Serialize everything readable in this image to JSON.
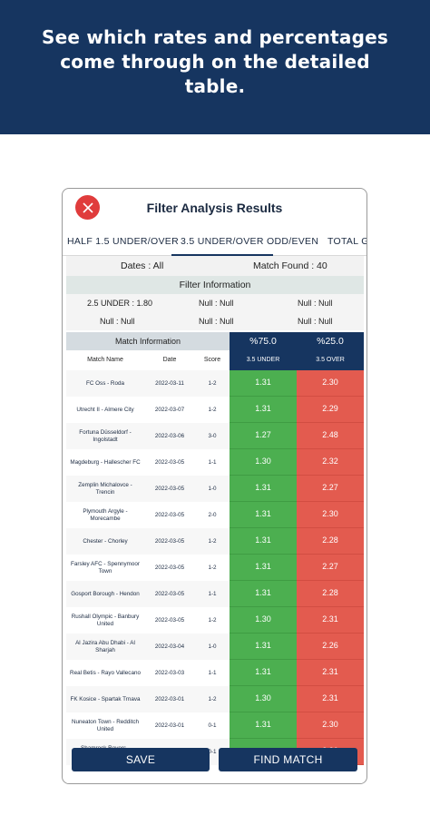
{
  "banner": {
    "text": "See which rates and percentages come through on the detailed table."
  },
  "header": {
    "title": "Filter Analysis Results",
    "close_icon": "close-icon",
    "accent": "#e03c3c"
  },
  "tabs": [
    "HALF 1.5 UNDER/OVER",
    "3.5 UNDER/OVER",
    "ODD/EVEN",
    "TOTAL G"
  ],
  "summary": {
    "dates": "Dates : All",
    "match_found": "Match Found : 40"
  },
  "filter_info": {
    "title": "Filter Information",
    "rows": [
      [
        "2.5 UNDER : 1.80",
        "Null : Null",
        "Null : Null"
      ],
      [
        "Null : Null",
        "Null : Null",
        "Null : Null"
      ]
    ]
  },
  "table": {
    "match_info_label": "Match Information",
    "under_pct": "%75.0",
    "over_pct": "%25.0",
    "headers": [
      "Match Name",
      "Date",
      "Score",
      "3.5 UNDER",
      "3.5 OVER"
    ],
    "rows": [
      {
        "match": "FC Oss - Roda",
        "date": "2022-03-11",
        "score": "1-2",
        "under": "1.31",
        "over": "2.30"
      },
      {
        "match": "Utrecht II - Almere City",
        "date": "2022-03-07",
        "score": "1-2",
        "under": "1.31",
        "over": "2.29"
      },
      {
        "match": "Fortuna Düsseldorf - Ingolstadt",
        "date": "2022-03-06",
        "score": "3-0",
        "under": "1.27",
        "over": "2.48"
      },
      {
        "match": "Magdeburg - Hallescher FC",
        "date": "2022-03-05",
        "score": "1-1",
        "under": "1.30",
        "over": "2.32"
      },
      {
        "match": "Zemplin Michalovce - Trencin",
        "date": "2022-03-05",
        "score": "1-0",
        "under": "1.31",
        "over": "2.27"
      },
      {
        "match": "Plymouth Argyle - Morecambe",
        "date": "2022-03-05",
        "score": "2-0",
        "under": "1.31",
        "over": "2.30"
      },
      {
        "match": "Chester - Chorley",
        "date": "2022-03-05",
        "score": "1-2",
        "under": "1.31",
        "over": "2.28"
      },
      {
        "match": "Farsley AFC - Spennymoor Town",
        "date": "2022-03-05",
        "score": "1-2",
        "under": "1.31",
        "over": "2.27"
      },
      {
        "match": "Gosport Borough - Hendon",
        "date": "2022-03-05",
        "score": "1-1",
        "under": "1.31",
        "over": "2.28"
      },
      {
        "match": "Rushall Olympic - Banbury United",
        "date": "2022-03-05",
        "score": "1-2",
        "under": "1.30",
        "over": "2.31"
      },
      {
        "match": "Al Jazira Abu Dhabi - Al Sharjah",
        "date": "2022-03-04",
        "score": "1-0",
        "under": "1.31",
        "over": "2.26"
      },
      {
        "match": "Real Betis - Rayo Vallecano",
        "date": "2022-03-03",
        "score": "1-1",
        "under": "1.31",
        "over": "2.31"
      },
      {
        "match": "FK Kosice - Spartak Trnava",
        "date": "2022-03-01",
        "score": "1-2",
        "under": "1.30",
        "over": "2.31"
      },
      {
        "match": "Nuneaton Town - Redditch United",
        "date": "2022-03-01",
        "score": "0-1",
        "under": "1.31",
        "over": "2.30"
      },
      {
        "match": "Shamrock Rovers - Drogheda",
        "date": "2022-02-...",
        "score": "0-1",
        "under": "",
        "over": "2.30"
      }
    ]
  },
  "buttons": {
    "save": "SAVE",
    "find_match": "FIND MATCH"
  },
  "colors": {
    "primary": "#163560",
    "under": "#4caf50",
    "over": "#e35b4f"
  }
}
